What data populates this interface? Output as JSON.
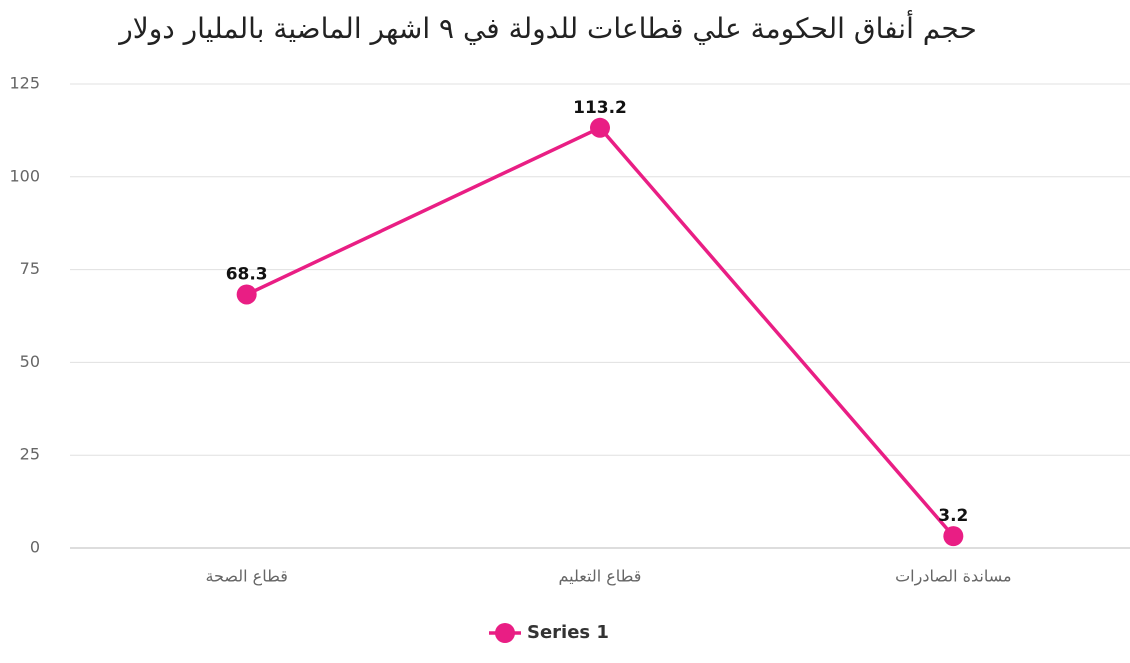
{
  "chart_data": {
    "type": "line",
    "title": "حجم أنفاق الحكومة علي قطاعات للدولة في ٩ اشهر الماضية بالمليار دولار",
    "categories": [
      "قطاع الصحة",
      "قطاع التعليم",
      "مساندة الصادرات"
    ],
    "series": [
      {
        "name": "Series 1",
        "color": "#e91e84",
        "values": [
          68.3,
          113.2,
          3.2
        ]
      }
    ],
    "ylim": [
      0,
      125
    ],
    "yticks": [
      0,
      25,
      50,
      75,
      100,
      125
    ],
    "grid": true,
    "legend": "bottom"
  }
}
